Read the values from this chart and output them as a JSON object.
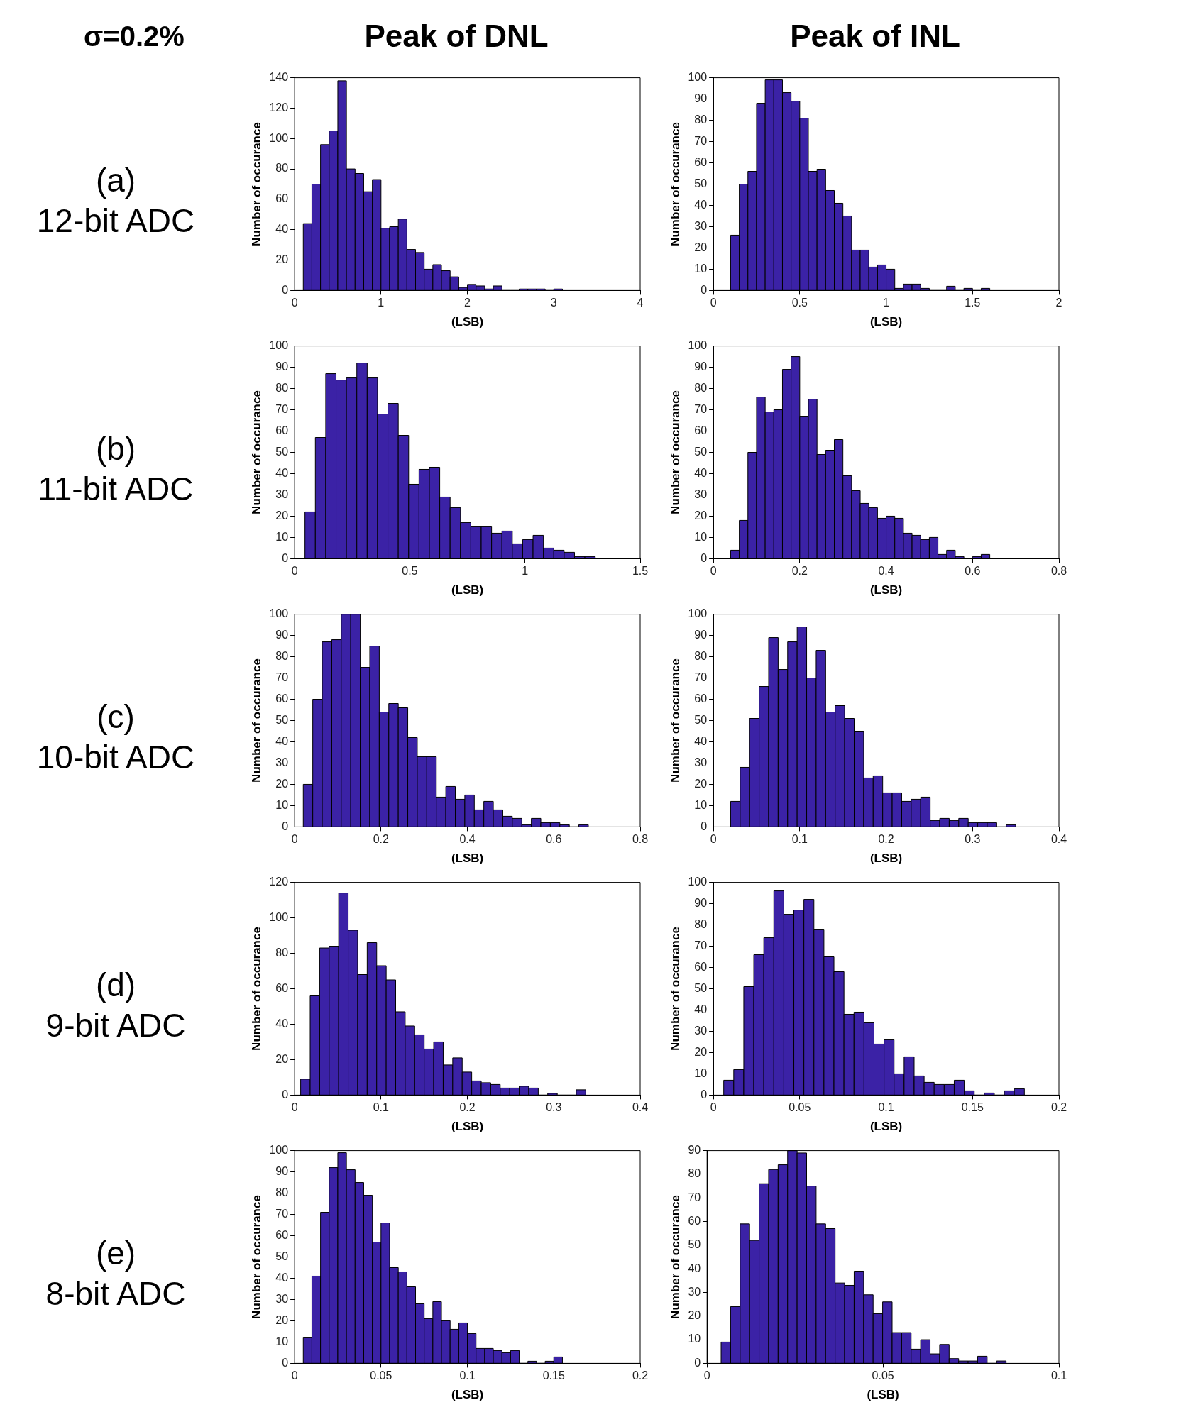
{
  "chart_data": [
    {
      "type": "histogram",
      "title": "Peak of DNL",
      "xlabel": "(LSB)",
      "ylabel": "Number of occurance",
      "annotations": [
        "σ=0.2%",
        "(a)",
        "12-bit ADC"
      ],
      "color": "#3b22a6",
      "grid": false,
      "legend": false,
      "xlim": [
        0,
        4
      ],
      "xticks": [
        0,
        1,
        2,
        3,
        4
      ],
      "ylim": [
        0,
        140
      ],
      "yticks": [
        0,
        20,
        40,
        60,
        80,
        100,
        120,
        140
      ],
      "bins": [
        0.1,
        0.2,
        0.3,
        0.4,
        0.5,
        0.6,
        0.7,
        0.8,
        0.9,
        1.0,
        1.1,
        1.2,
        1.3,
        1.4,
        1.5,
        1.6,
        1.7,
        1.8,
        1.9,
        2.0,
        2.1,
        2.2,
        2.3,
        2.4,
        2.5,
        2.6,
        2.7,
        2.8,
        2.9,
        3.0,
        3.1
      ],
      "values": [
        44,
        70,
        96,
        105,
        138,
        80,
        77,
        65,
        73,
        41,
        42,
        47,
        27,
        25,
        14,
        17,
        13,
        9,
        2,
        4,
        3,
        1,
        3,
        0,
        0,
        1,
        1,
        1,
        0,
        1
      ]
    },
    {
      "type": "histogram",
      "title": "Peak of INL",
      "xlabel": "(LSB)",
      "ylabel": "Number of occurance",
      "color": "#3b22a6",
      "grid": false,
      "legend": false,
      "xlim": [
        0,
        2
      ],
      "xticks": [
        0,
        0.5,
        1,
        1.5,
        2
      ],
      "ylim": [
        0,
        100
      ],
      "yticks": [
        0,
        10,
        20,
        30,
        40,
        50,
        60,
        70,
        80,
        90,
        100
      ],
      "bins": [
        0.1,
        0.15,
        0.2,
        0.25,
        0.3,
        0.35,
        0.4,
        0.45,
        0.5,
        0.55,
        0.6,
        0.65,
        0.7,
        0.75,
        0.8,
        0.85,
        0.9,
        0.95,
        1.0,
        1.05,
        1.1,
        1.15,
        1.2,
        1.25,
        1.3,
        1.35,
        1.4,
        1.45,
        1.5,
        1.55,
        1.6
      ],
      "values": [
        26,
        50,
        56,
        88,
        99,
        99,
        93,
        89,
        81,
        56,
        57,
        47,
        41,
        35,
        19,
        19,
        11,
        12,
        10,
        1,
        3,
        3,
        1,
        0,
        0,
        2,
        0,
        1,
        0,
        1
      ]
    },
    {
      "type": "histogram",
      "xlabel": "(LSB)",
      "ylabel": "Number of occurance",
      "annotations": [
        "(b)",
        "11-bit ADC"
      ],
      "color": "#3b22a6",
      "grid": false,
      "legend": false,
      "xlim": [
        0,
        1.5
      ],
      "xticks": [
        0,
        0.5,
        1,
        1.5
      ],
      "ylim": [
        0,
        100
      ],
      "yticks": [
        0,
        10,
        20,
        30,
        40,
        50,
        60,
        70,
        80,
        90,
        100
      ],
      "bins": [
        0.045,
        0.09,
        0.135,
        0.18,
        0.225,
        0.27,
        0.315,
        0.36,
        0.405,
        0.45,
        0.495,
        0.54,
        0.585,
        0.63,
        0.675,
        0.72,
        0.765,
        0.81,
        0.855,
        0.9,
        0.945,
        0.99,
        1.035,
        1.08,
        1.125,
        1.17,
        1.215,
        1.26,
        1.305
      ],
      "values": [
        22,
        57,
        87,
        84,
        85,
        92,
        85,
        68,
        73,
        58,
        35,
        42,
        43,
        29,
        24,
        17,
        15,
        15,
        12,
        13,
        7,
        9,
        11,
        5,
        4,
        3,
        1,
        1
      ]
    },
    {
      "type": "histogram",
      "xlabel": "(LSB)",
      "ylabel": "Number of occurance",
      "color": "#3b22a6",
      "grid": false,
      "legend": false,
      "xlim": [
        0,
        0.8
      ],
      "xticks": [
        0,
        0.2,
        0.4,
        0.6,
        0.8
      ],
      "ylim": [
        0,
        100
      ],
      "yticks": [
        0,
        10,
        20,
        30,
        40,
        50,
        60,
        70,
        80,
        90,
        100
      ],
      "bins": [
        0.04,
        0.06,
        0.08,
        0.1,
        0.12,
        0.14,
        0.16,
        0.18,
        0.2,
        0.22,
        0.24,
        0.26,
        0.28,
        0.3,
        0.32,
        0.34,
        0.36,
        0.38,
        0.4,
        0.42,
        0.44,
        0.46,
        0.48,
        0.5,
        0.52,
        0.54,
        0.56,
        0.58,
        0.6,
        0.62,
        0.64
      ],
      "values": [
        4,
        18,
        50,
        76,
        69,
        70,
        89,
        95,
        67,
        75,
        49,
        51,
        56,
        39,
        32,
        26,
        24,
        19,
        20,
        19,
        12,
        11,
        9,
        10,
        2,
        4,
        1,
        0,
        1,
        2
      ]
    },
    {
      "type": "histogram",
      "xlabel": "(LSB)",
      "ylabel": "Number of occurance",
      "annotations": [
        "(c)",
        "10-bit ADC"
      ],
      "color": "#3b22a6",
      "grid": false,
      "legend": false,
      "xlim": [
        0,
        0.8
      ],
      "xticks": [
        0,
        0.2,
        0.4,
        0.6,
        0.8
      ],
      "ylim": [
        0,
        100
      ],
      "yticks": [
        0,
        10,
        20,
        30,
        40,
        50,
        60,
        70,
        80,
        90,
        100
      ],
      "bins": [
        0.02,
        0.042,
        0.064,
        0.086,
        0.108,
        0.13,
        0.152,
        0.174,
        0.196,
        0.218,
        0.24,
        0.262,
        0.284,
        0.306,
        0.328,
        0.35,
        0.372,
        0.394,
        0.416,
        0.438,
        0.46,
        0.482,
        0.504,
        0.526,
        0.548,
        0.57,
        0.592,
        0.614,
        0.636,
        0.658,
        0.68
      ],
      "values": [
        20,
        60,
        87,
        88,
        100,
        100,
        75,
        85,
        54,
        58,
        56,
        42,
        33,
        33,
        14,
        19,
        13,
        15,
        8,
        12,
        8,
        5,
        4,
        1,
        4,
        2,
        2,
        1,
        0,
        1
      ]
    },
    {
      "type": "histogram",
      "xlabel": "(LSB)",
      "ylabel": "Number of occurance",
      "color": "#3b22a6",
      "grid": false,
      "legend": false,
      "xlim": [
        0,
        0.4
      ],
      "xticks": [
        0,
        0.1,
        0.2,
        0.3,
        0.4
      ],
      "ylim": [
        0,
        100
      ],
      "yticks": [
        0,
        10,
        20,
        30,
        40,
        50,
        60,
        70,
        80,
        90,
        100
      ],
      "bins": [
        0.02,
        0.031,
        0.042,
        0.053,
        0.064,
        0.075,
        0.086,
        0.097,
        0.108,
        0.119,
        0.13,
        0.141,
        0.152,
        0.163,
        0.174,
        0.185,
        0.196,
        0.207,
        0.218,
        0.229,
        0.24,
        0.251,
        0.262,
        0.273,
        0.284,
        0.295,
        0.306,
        0.317,
        0.328,
        0.339,
        0.35
      ],
      "values": [
        12,
        28,
        51,
        66,
        89,
        74,
        87,
        94,
        70,
        83,
        54,
        57,
        51,
        45,
        23,
        24,
        16,
        16,
        12,
        13,
        14,
        3,
        4,
        3,
        4,
        2,
        2,
        2,
        0,
        1
      ]
    },
    {
      "type": "histogram",
      "xlabel": "(LSB)",
      "ylabel": "Number of occurance",
      "annotations": [
        "(d)",
        "9-bit ADC"
      ],
      "color": "#3b22a6",
      "grid": false,
      "legend": false,
      "xlim": [
        0,
        0.4
      ],
      "xticks": [
        0,
        0.1,
        0.2,
        0.3,
        0.4
      ],
      "ylim": [
        0,
        120
      ],
      "yticks": [
        0,
        20,
        40,
        60,
        80,
        100,
        120
      ],
      "bins": [
        0.007,
        0.018,
        0.029,
        0.04,
        0.051,
        0.062,
        0.073,
        0.084,
        0.095,
        0.106,
        0.117,
        0.128,
        0.139,
        0.15,
        0.161,
        0.172,
        0.183,
        0.194,
        0.205,
        0.216,
        0.227,
        0.238,
        0.249,
        0.26,
        0.271,
        0.282,
        0.293,
        0.304,
        0.315,
        0.326,
        0.337
      ],
      "values": [
        9,
        56,
        83,
        84,
        114,
        93,
        68,
        86,
        73,
        65,
        47,
        39,
        34,
        26,
        30,
        17,
        21,
        13,
        8,
        7,
        6,
        4,
        4,
        5,
        4,
        0,
        1,
        0,
        0,
        3
      ]
    },
    {
      "type": "histogram",
      "xlabel": "(LSB)",
      "ylabel": "Number of occurance",
      "color": "#3b22a6",
      "grid": false,
      "legend": false,
      "xlim": [
        0,
        0.2
      ],
      "xticks": [
        0,
        0.05,
        0.1,
        0.15,
        0.2
      ],
      "ylim": [
        0,
        100
      ],
      "yticks": [
        0,
        10,
        20,
        30,
        40,
        50,
        60,
        70,
        80,
        90,
        100
      ],
      "bins": [
        0.006,
        0.0118,
        0.0176,
        0.0234,
        0.0292,
        0.035,
        0.0408,
        0.0466,
        0.0524,
        0.0582,
        0.064,
        0.0698,
        0.0756,
        0.0814,
        0.0872,
        0.093,
        0.0988,
        0.1046,
        0.1104,
        0.1162,
        0.122,
        0.1278,
        0.1336,
        0.1394,
        0.1452,
        0.151,
        0.1568,
        0.1626,
        0.1684,
        0.1742,
        0.18
      ],
      "values": [
        7,
        12,
        51,
        66,
        74,
        96,
        85,
        87,
        92,
        78,
        65,
        58,
        38,
        39,
        34,
        24,
        26,
        10,
        18,
        9,
        6,
        5,
        5,
        7,
        2,
        0,
        1,
        0,
        2,
        3
      ]
    },
    {
      "type": "histogram",
      "xlabel": "(LSB)",
      "ylabel": "Number of occurance",
      "annotations": [
        "(e)",
        "8-bit ADC"
      ],
      "color": "#3b22a6",
      "grid": false,
      "legend": false,
      "xlim": [
        0,
        0.2
      ],
      "xticks": [
        0,
        0.05,
        0.1,
        0.15,
        0.2
      ],
      "ylim": [
        0,
        100
      ],
      "yticks": [
        0,
        10,
        20,
        30,
        40,
        50,
        60,
        70,
        80,
        90,
        100
      ],
      "bins": [
        0.005,
        0.01,
        0.015,
        0.02,
        0.025,
        0.03,
        0.035,
        0.04,
        0.045,
        0.05,
        0.055,
        0.06,
        0.065,
        0.07,
        0.075,
        0.08,
        0.085,
        0.09,
        0.095,
        0.1,
        0.105,
        0.11,
        0.115,
        0.12,
        0.125,
        0.13,
        0.135,
        0.14,
        0.145,
        0.15,
        0.155
      ],
      "values": [
        12,
        41,
        71,
        92,
        99,
        91,
        85,
        79,
        57,
        66,
        45,
        43,
        36,
        28,
        21,
        29,
        20,
        16,
        19,
        14,
        7,
        7,
        6,
        5,
        6,
        0,
        1,
        0,
        1,
        3
      ]
    },
    {
      "type": "histogram",
      "xlabel": "(LSB)",
      "ylabel": "Number of occurance",
      "color": "#3b22a6",
      "grid": false,
      "legend": false,
      "xlim": [
        0,
        0.1
      ],
      "xticks": [
        0,
        0.05,
        0.1
      ],
      "ylim": [
        0,
        90
      ],
      "yticks": [
        0,
        10,
        20,
        30,
        40,
        50,
        60,
        70,
        80,
        90
      ],
      "bins": [
        0.004,
        0.0067,
        0.0094,
        0.0121,
        0.0148,
        0.0175,
        0.0202,
        0.0229,
        0.0256,
        0.0283,
        0.031,
        0.0337,
        0.0364,
        0.0391,
        0.0418,
        0.0445,
        0.0472,
        0.0499,
        0.0526,
        0.0553,
        0.058,
        0.0607,
        0.0634,
        0.0661,
        0.0688,
        0.0715,
        0.0742,
        0.0769,
        0.0796,
        0.0823,
        0.085
      ],
      "values": [
        9,
        24,
        59,
        52,
        76,
        82,
        84,
        90,
        89,
        75,
        59,
        57,
        34,
        33,
        39,
        29,
        21,
        26,
        13,
        13,
        6,
        10,
        4,
        8,
        2,
        1,
        1,
        3,
        0,
        1
      ]
    }
  ]
}
